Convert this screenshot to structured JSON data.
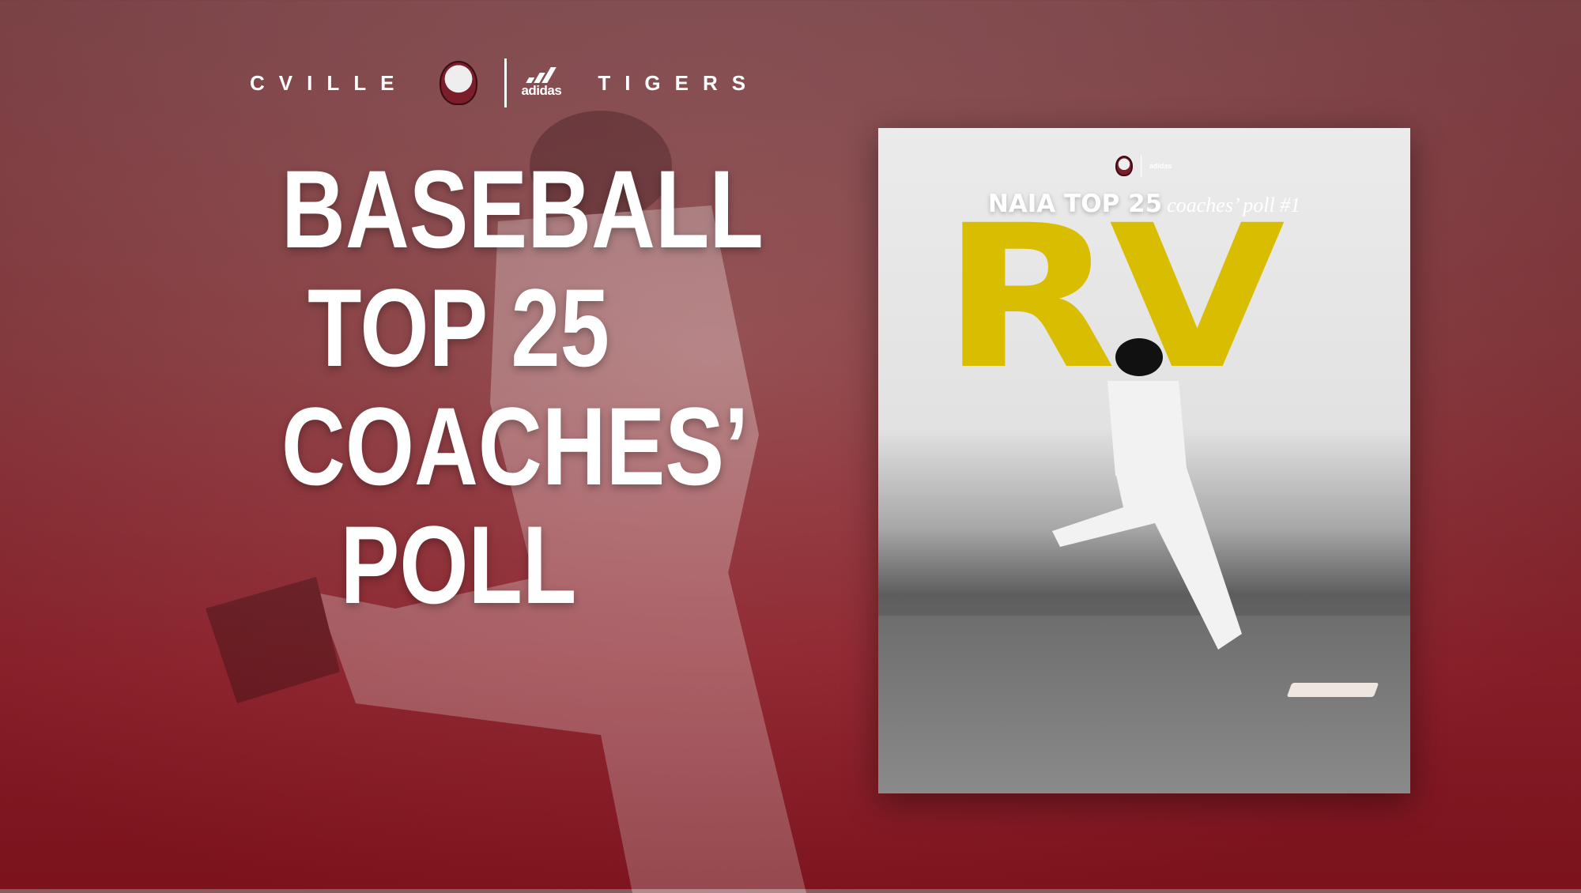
{
  "header": {
    "left_wordmark": "CVILLE",
    "right_wordmark": "TIGERS",
    "sponsor": "adidas",
    "logo_icon": "tiger-head-logo"
  },
  "headline": {
    "lines": [
      "BASEBALL",
      "TOP 25",
      "COACHES’",
      "POLL"
    ]
  },
  "card": {
    "sponsor": "adidas",
    "heading_bold": "NAIA TOP 25",
    "heading_script": "coaches’ poll #1",
    "rank": "RV",
    "rank_color": "#d9bd00"
  },
  "colors": {
    "background": "#8f4548",
    "accent": "#d9bd00"
  }
}
